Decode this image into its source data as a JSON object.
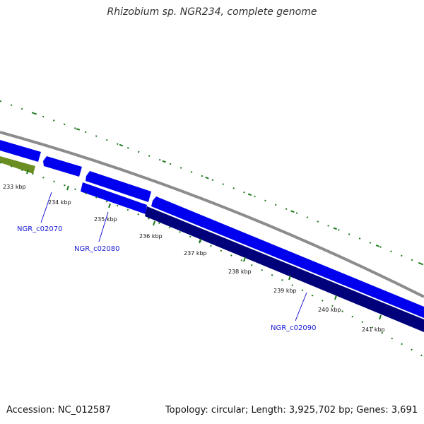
{
  "title": "Rhizobium sp. NGR234, complete genome",
  "footer": {
    "accession": "Accession: NC_012587",
    "summary": "Topology: circular; Length: 3,925,702 bp; Genes: 3,691"
  },
  "colors": {
    "backbone": "#8c8c8c",
    "forward_gene": "#0000ee",
    "reverse_gene": "#00007a",
    "other_gene": "#6b8e23",
    "tick": "#1e7a1e",
    "label": "#1a1ad6"
  },
  "ticks": [
    "233 kbp",
    "234 kbp",
    "235 kbp",
    "236 kbp",
    "237 kbp",
    "238 kbp",
    "239 kbp",
    "240 kbp",
    "241 kbp"
  ],
  "genes": [
    "NGR_c02070",
    "NGR_c02080",
    "NGR_c02090"
  ]
}
